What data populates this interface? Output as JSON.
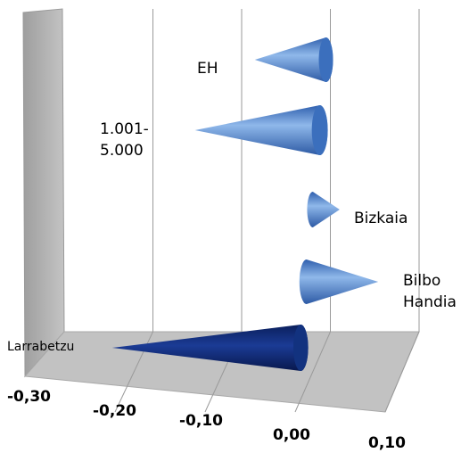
{
  "chart_data": {
    "type": "bar",
    "orientation": "horizontal",
    "style": "3d-cone",
    "categories": [
      "EH",
      "1.001-\n5.000",
      "Bizkaia",
      "Bilbo\nHandia",
      "Larrabetzu"
    ],
    "values": [
      -0.08,
      -0.14,
      0.03,
      0.08,
      -0.21
    ],
    "xlim": [
      -0.3,
      0.1
    ],
    "x_ticks": [
      "-0,30",
      "-0,20",
      "-0,10",
      "0,00",
      "0,10"
    ],
    "grid": true,
    "highlight_category": "Larrabetzu",
    "colors": {
      "default_cone": "#4a7fc8",
      "highlight_cone": "#0d2a78",
      "wall": "#b4b4b4",
      "gridline": "#9a9a9a"
    }
  }
}
